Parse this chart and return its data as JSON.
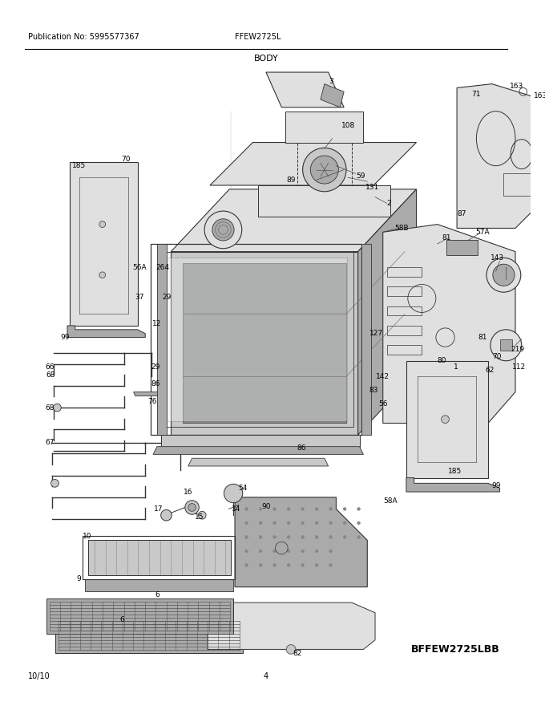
{
  "title": "BODY",
  "pub_no": "Publication No: 5995577367",
  "model": "FFEW2725L",
  "diagram_id": "BFFEW2725LBB",
  "date": "10/10",
  "page": "4",
  "bg_color": "#ffffff",
  "lc": "#333333",
  "gray1": "#c8c8c8",
  "gray2": "#aaaaaa",
  "gray3": "#e0e0e0",
  "gray4": "#888888"
}
